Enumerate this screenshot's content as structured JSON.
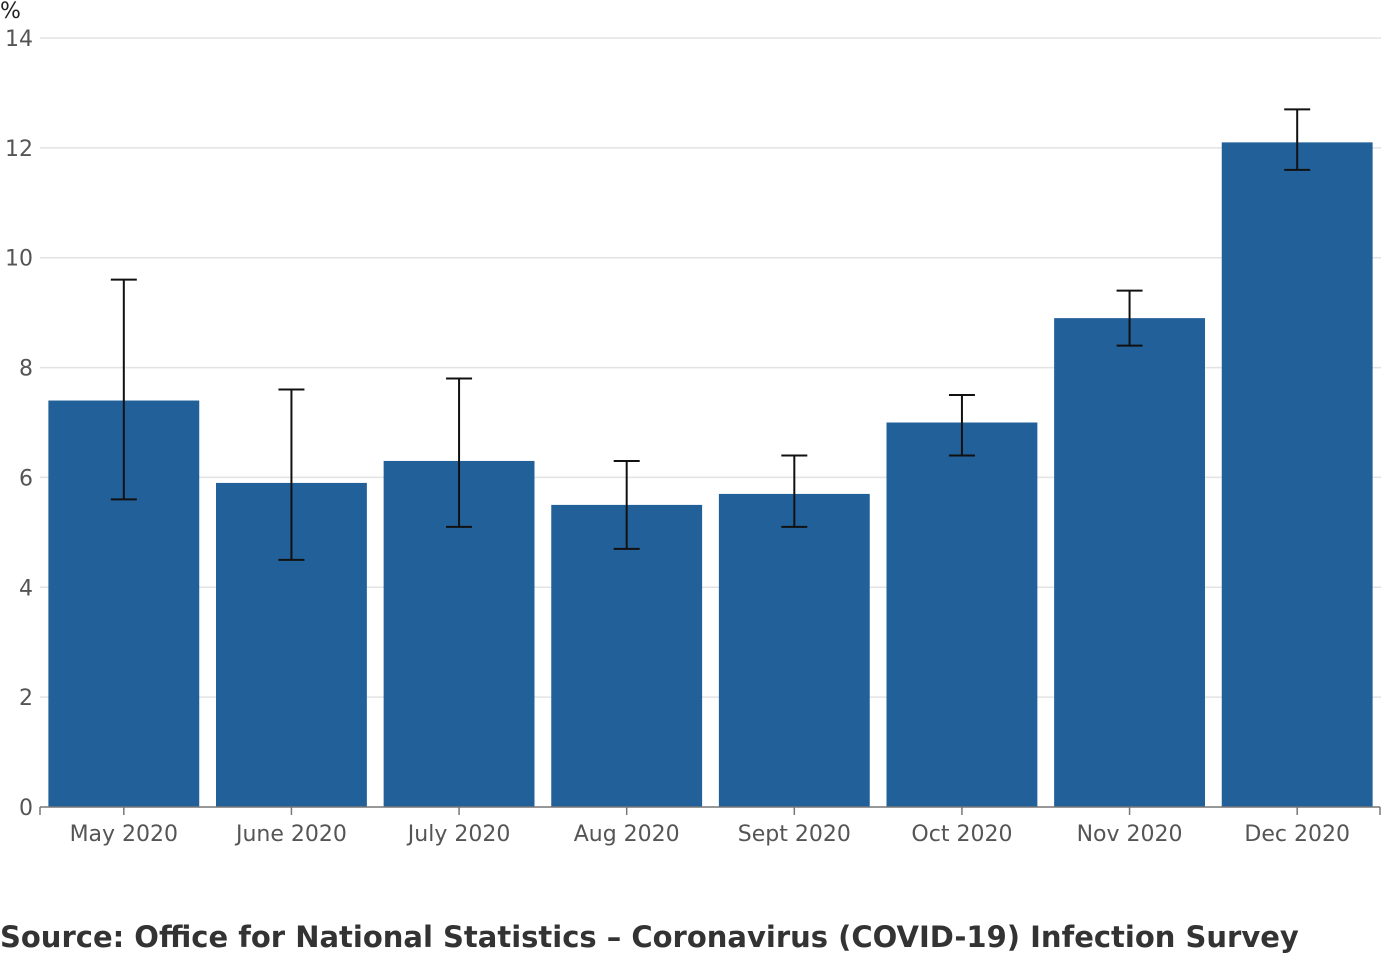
{
  "chart_data": {
    "type": "bar",
    "categories": [
      "May 2020",
      "June 2020",
      "July 2020",
      "Aug 2020",
      "Sept 2020",
      "Oct 2020",
      "Nov 2020",
      "Dec 2020"
    ],
    "values": [
      7.4,
      5.9,
      6.3,
      5.5,
      5.7,
      7.0,
      8.9,
      12.1
    ],
    "error_low": [
      5.6,
      4.5,
      5.1,
      4.7,
      5.1,
      6.4,
      8.4,
      11.6
    ],
    "error_high": [
      9.6,
      7.6,
      7.8,
      6.3,
      6.4,
      7.5,
      9.4,
      12.7
    ],
    "ylabel": "%",
    "ylim": [
      0,
      14
    ],
    "yticks": [
      0,
      2,
      4,
      6,
      8,
      10,
      12,
      14
    ],
    "grid": true,
    "bar_color": "#22609a",
    "error_bar_color": "#111111"
  },
  "source": "Source: Office for National Statistics – Coronavirus (COVID-19) Infection Survey"
}
